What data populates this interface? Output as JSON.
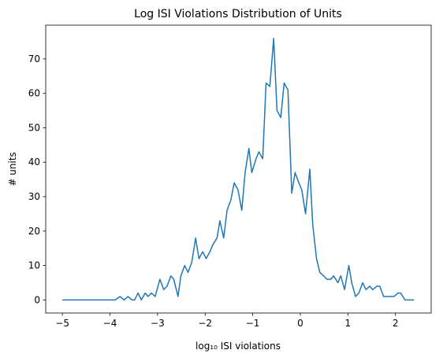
{
  "chart_data": {
    "type": "line",
    "title": "Log ISI Violations Distribution of Units",
    "x_label": "log₁₀ ISI violations",
    "y_label": "# units",
    "x": [
      -5,
      -3.89,
      -3.79,
      -3.7,
      -3.62,
      -3.54,
      -3.48,
      -3.41,
      -3.34,
      -3.26,
      -3.2,
      -3.13,
      -3.05,
      -2.95,
      -2.87,
      -2.8,
      -2.72,
      -2.66,
      -2.57,
      -2.51,
      -2.43,
      -2.36,
      -2.28,
      -2.2,
      -2.13,
      -2.05,
      -1.98,
      -1.9,
      -1.84,
      -1.75,
      -1.69,
      -1.61,
      -1.54,
      -1.46,
      -1.39,
      -1.31,
      -1.23,
      -1.16,
      -1.08,
      -1.02,
      -0.93,
      -0.87,
      -0.79,
      -0.72,
      -0.64,
      -0.56,
      -0.49,
      -0.41,
      -0.34,
      -0.26,
      -0.18,
      -0.11,
      -0.03,
      0.03,
      0.11,
      0.2,
      0.26,
      0.34,
      0.41,
      0.49,
      0.56,
      0.64,
      0.7,
      0.79,
      0.85,
      0.93,
      1.02,
      1.08,
      1.16,
      1.23,
      1.31,
      1.38,
      1.46,
      1.52,
      1.61,
      1.67,
      1.75,
      1.82,
      1.9,
      1.97,
      2.05,
      2.11,
      2.2,
      2.28,
      2.39
    ],
    "series": [
      {
        "name": "units",
        "color": "#1f77b4",
        "values": [
          0,
          0,
          1,
          0,
          1,
          0,
          0,
          2,
          0,
          2,
          1,
          2,
          1,
          6,
          3,
          4,
          7,
          6,
          1,
          7,
          10,
          8,
          11,
          18,
          12,
          14,
          12,
          14,
          16,
          18,
          23,
          18,
          26,
          29,
          34,
          32,
          26,
          37,
          44,
          37,
          41,
          43,
          41,
          63,
          62,
          76,
          55,
          53,
          63,
          61,
          31,
          37,
          34,
          32,
          25,
          38,
          22,
          12,
          8,
          7,
          6,
          6,
          7,
          5,
          7,
          3,
          10,
          5,
          1,
          2,
          5,
          3,
          4,
          3,
          4,
          4,
          1,
          1,
          1,
          1,
          2,
          2,
          0,
          0,
          0
        ]
      }
    ],
    "xlim": [
      -5.35,
      2.75
    ],
    "ylim": [
      -3.8,
      79.8
    ],
    "xticks": [
      {
        "value": -5,
        "label": "−5"
      },
      {
        "value": -4,
        "label": "−4"
      },
      {
        "value": -3,
        "label": "−3"
      },
      {
        "value": -2,
        "label": "−2"
      },
      {
        "value": -1,
        "label": "−1"
      },
      0,
      1,
      2
    ],
    "yticks": [
      0,
      10,
      20,
      30,
      40,
      50,
      60,
      70
    ],
    "grid": false
  }
}
